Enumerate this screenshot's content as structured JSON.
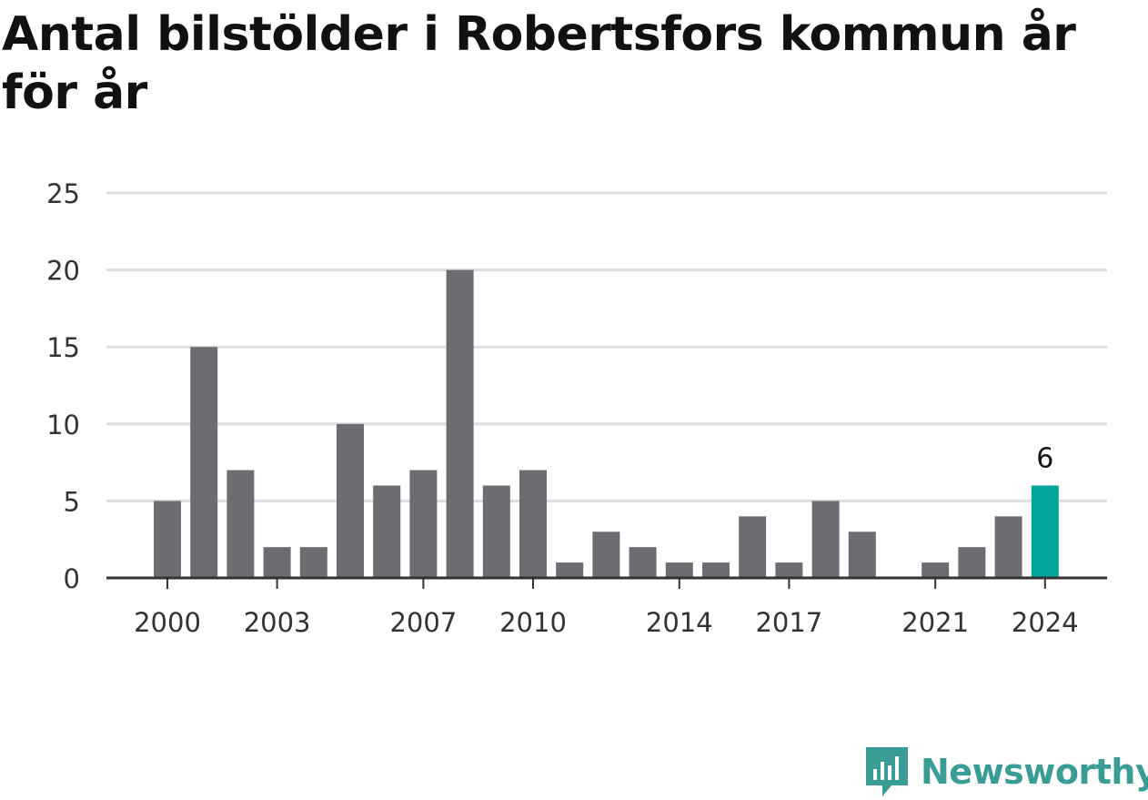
{
  "title": "Antal bilstölder i Robertsfors kommun år för år",
  "brand": {
    "name": "Newsworthy",
    "icon": "newsworthy-logo-icon",
    "color": "#3a9d95"
  },
  "colors": {
    "bar": "#6d6c72",
    "highlight": "#00a59b",
    "grid": "#dddddd",
    "axis": "#333333"
  },
  "chart_data": {
    "type": "bar",
    "title": "Antal bilstölder i Robertsfors kommun år för år",
    "xlabel": "",
    "ylabel": "",
    "x": [
      2000,
      2001,
      2002,
      2003,
      2004,
      2005,
      2006,
      2007,
      2008,
      2009,
      2010,
      2011,
      2012,
      2013,
      2014,
      2015,
      2016,
      2017,
      2018,
      2019,
      2020,
      2021,
      2022,
      2023,
      2024
    ],
    "values": [
      5,
      15,
      7,
      2,
      2,
      10,
      6,
      7,
      20,
      6,
      7,
      1,
      3,
      2,
      1,
      1,
      4,
      1,
      5,
      3,
      0,
      1,
      2,
      4,
      6
    ],
    "x_tick_labels": [
      "2000",
      "2003",
      "2007",
      "2010",
      "2014",
      "2017",
      "2021",
      "2024"
    ],
    "y_ticks": [
      0,
      5,
      10,
      15,
      20,
      25
    ],
    "ylim": [
      0,
      25
    ],
    "grid": true,
    "highlight": {
      "x": 2024,
      "value": 6,
      "label": "6"
    }
  }
}
